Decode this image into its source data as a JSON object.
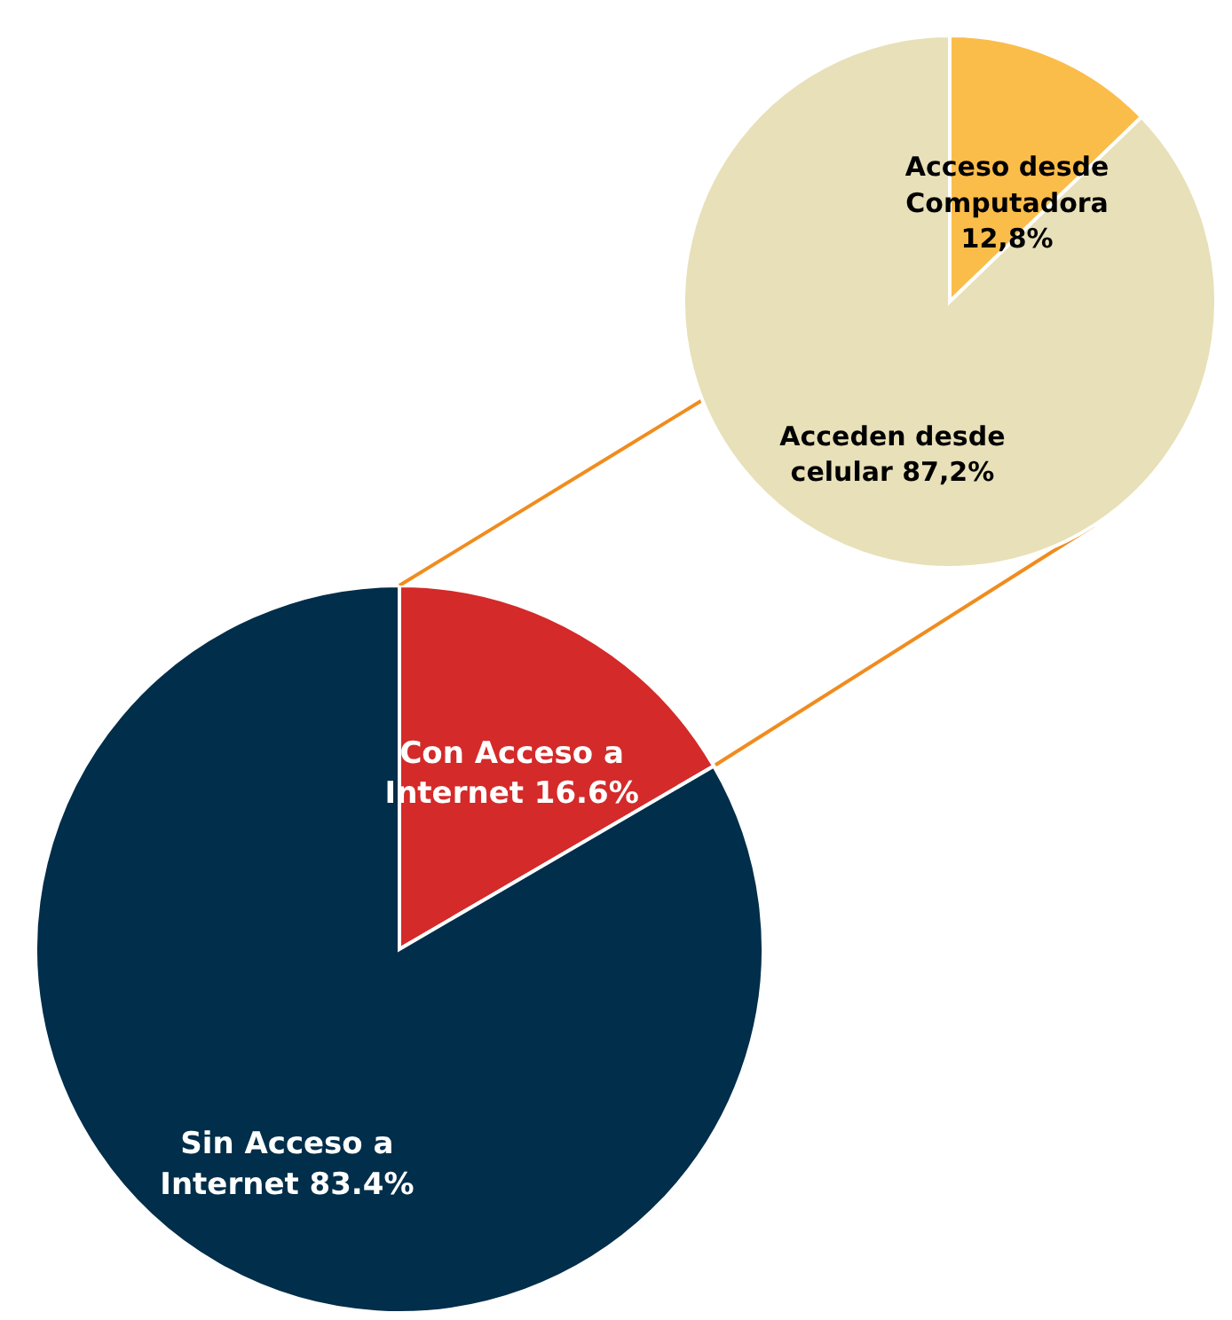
{
  "chart_data": [
    {
      "type": "pie",
      "categories": [
        "Con Acceso a Internet",
        "Sin Acceso a Internet"
      ],
      "values": [
        16.6,
        83.4
      ],
      "colors": [
        "#d42a2a",
        "#012e4a"
      ],
      "value_labels": [
        "16.6%",
        "83.4%"
      ]
    },
    {
      "type": "pie",
      "categories": [
        "Acceso desde Computadora",
        "Acceden desde celular"
      ],
      "values": [
        12.8,
        87.2
      ],
      "colors": [
        "#fbbd4a",
        "#e8e0b8"
      ],
      "value_labels": [
        "12,8%",
        "87,2%"
      ]
    }
  ]
}
